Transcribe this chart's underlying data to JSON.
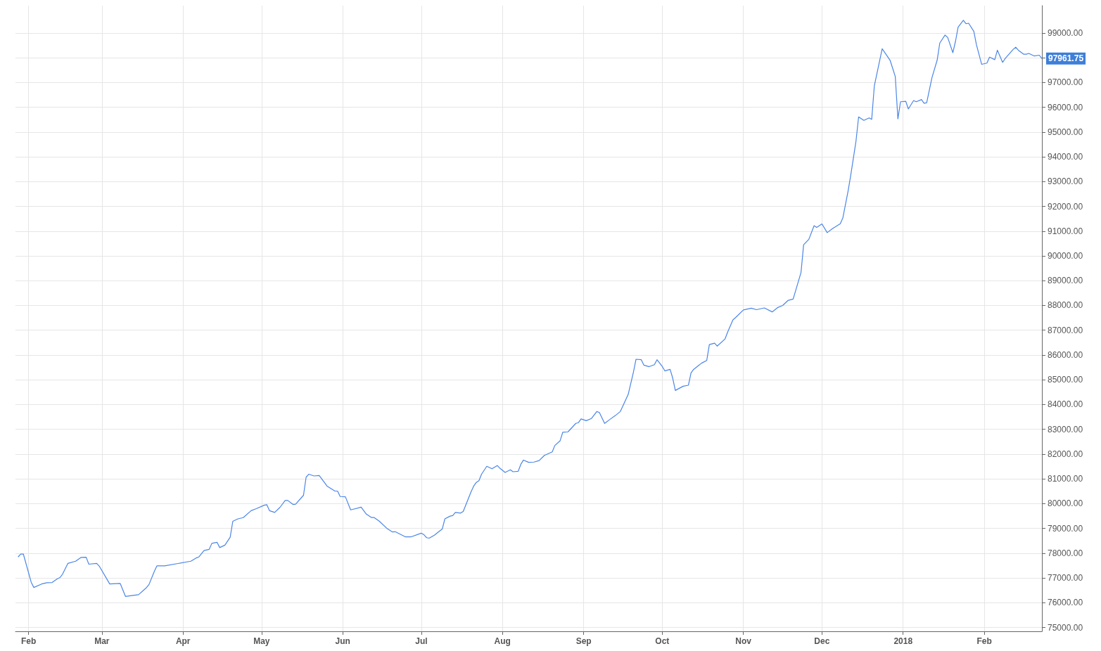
{
  "chart_data": {
    "type": "line",
    "x": [
      "2017-01-28",
      "2017-01-29",
      "2017-01-30",
      "2017-02-02",
      "2017-02-03",
      "2017-02-06",
      "2017-02-08",
      "2017-02-10",
      "2017-02-12",
      "2017-02-13",
      "2017-02-14",
      "2017-02-16",
      "2017-02-19",
      "2017-02-21",
      "2017-02-23",
      "2017-02-24",
      "2017-02-27",
      "2017-02-28",
      "2017-03-04",
      "2017-03-08",
      "2017-03-10",
      "2017-03-15",
      "2017-03-18",
      "2017-03-19",
      "2017-03-21",
      "2017-03-22",
      "2017-03-25",
      "2017-04-04",
      "2017-04-06",
      "2017-04-07",
      "2017-04-09",
      "2017-04-11",
      "2017-04-12",
      "2017-04-14",
      "2017-04-15",
      "2017-04-17",
      "2017-04-19",
      "2017-04-20",
      "2017-04-22",
      "2017-04-24",
      "2017-04-27",
      "2017-04-29",
      "2017-05-02",
      "2017-05-03",
      "2017-05-04",
      "2017-05-06",
      "2017-05-08",
      "2017-05-10",
      "2017-05-11",
      "2017-05-13",
      "2017-05-14",
      "2017-05-17",
      "2017-05-18",
      "2017-05-19",
      "2017-05-21",
      "2017-05-23",
      "2017-05-26",
      "2017-05-29",
      "2017-05-30",
      "2017-05-31",
      "2017-06-02",
      "2017-06-04",
      "2017-06-08",
      "2017-06-10",
      "2017-06-12",
      "2017-06-13",
      "2017-06-15",
      "2017-06-18",
      "2017-06-20",
      "2017-06-21",
      "2017-06-25",
      "2017-06-27",
      "2017-07-01",
      "2017-07-02",
      "2017-07-03",
      "2017-07-04",
      "2017-07-06",
      "2017-07-08",
      "2017-07-09",
      "2017-07-10",
      "2017-07-12",
      "2017-07-13",
      "2017-07-14",
      "2017-07-16",
      "2017-07-17",
      "2017-07-20",
      "2017-07-21",
      "2017-07-22",
      "2017-07-23",
      "2017-07-24",
      "2017-07-26",
      "2017-07-28",
      "2017-07-30",
      "2017-07-31",
      "2017-08-02",
      "2017-08-04",
      "2017-08-05",
      "2017-08-07",
      "2017-08-08",
      "2017-08-09",
      "2017-08-11",
      "2017-08-13",
      "2017-08-15",
      "2017-08-17",
      "2017-08-20",
      "2017-08-21",
      "2017-08-23",
      "2017-08-24",
      "2017-08-26",
      "2017-08-29",
      "2017-08-30",
      "2017-08-31",
      "2017-09-02",
      "2017-09-04",
      "2017-09-06",
      "2017-09-07",
      "2017-09-09",
      "2017-09-11",
      "2017-09-13",
      "2017-09-15",
      "2017-09-16",
      "2017-09-18",
      "2017-09-20",
      "2017-09-21",
      "2017-09-23",
      "2017-09-24",
      "2017-09-26",
      "2017-09-28",
      "2017-09-29",
      "2017-10-01",
      "2017-10-02",
      "2017-10-04",
      "2017-10-05",
      "2017-10-06",
      "2017-10-09",
      "2017-10-11",
      "2017-10-12",
      "2017-10-13",
      "2017-10-15",
      "2017-10-16",
      "2017-10-18",
      "2017-10-19",
      "2017-10-21",
      "2017-10-22",
      "2017-10-25",
      "2017-10-26",
      "2017-10-28",
      "2017-10-29",
      "2017-11-01",
      "2017-11-04",
      "2017-11-06",
      "2017-11-09",
      "2017-11-12",
      "2017-11-14",
      "2017-11-16",
      "2017-11-18",
      "2017-11-20",
      "2017-11-23",
      "2017-11-24",
      "2017-11-26",
      "2017-11-28",
      "2017-11-29",
      "2017-12-01",
      "2017-12-03",
      "2017-12-05",
      "2017-12-08",
      "2017-12-09",
      "2017-12-11",
      "2017-12-12",
      "2017-12-14",
      "2017-12-15",
      "2017-12-17",
      "2017-12-19",
      "2017-12-20",
      "2017-12-21",
      "2017-12-24",
      "2017-12-27",
      "2017-12-29",
      "2017-12-30",
      "2017-12-31",
      "2018-01-02",
      "2018-01-03",
      "2018-01-05",
      "2018-01-06",
      "2018-01-08",
      "2018-01-09",
      "2018-01-10",
      "2018-01-12",
      "2018-01-14",
      "2018-01-15",
      "2018-01-17",
      "2018-01-18",
      "2018-01-20",
      "2018-01-21",
      "2018-01-22",
      "2018-01-24",
      "2018-01-25",
      "2018-01-26",
      "2018-01-28",
      "2018-01-29",
      "2018-01-31",
      "2018-02-02",
      "2018-02-03",
      "2018-02-05",
      "2018-02-06",
      "2018-02-08",
      "2018-02-09",
      "2018-02-12",
      "2018-02-13",
      "2018-02-14",
      "2018-02-16",
      "2018-02-17",
      "2018-02-18",
      "2018-02-20",
      "2018-02-22",
      "2018-02-23"
    ],
    "series": [
      {
        "color": "#4a86e8",
        "values": [
          77850,
          77970,
          77970,
          76830,
          76620,
          76760,
          76810,
          76820,
          76970,
          77020,
          77160,
          77590,
          77680,
          77830,
          77840,
          77560,
          77590,
          77480,
          76760,
          76780,
          76260,
          76330,
          76610,
          76740,
          77260,
          77490,
          77490,
          77680,
          77810,
          77850,
          78110,
          78160,
          78400,
          78440,
          78230,
          78330,
          78650,
          79290,
          79390,
          79440,
          79720,
          79800,
          79940,
          79960,
          79720,
          79650,
          79850,
          80130,
          80130,
          79970,
          79980,
          80340,
          81070,
          81190,
          81120,
          81140,
          80710,
          80510,
          80510,
          80290,
          80280,
          79750,
          79860,
          79580,
          79440,
          79440,
          79290,
          78990,
          78860,
          78870,
          78660,
          78660,
          78810,
          78750,
          78630,
          78610,
          78730,
          78900,
          78980,
          79390,
          79500,
          79520,
          79650,
          79620,
          79690,
          80480,
          80710,
          80860,
          80930,
          81190,
          81510,
          81410,
          81540,
          81430,
          81260,
          81370,
          81290,
          81310,
          81590,
          81760,
          81670,
          81680,
          81740,
          81950,
          82090,
          82350,
          82540,
          82880,
          82900,
          83240,
          83270,
          83420,
          83350,
          83440,
          83720,
          83680,
          83240,
          83400,
          83550,
          83720,
          83950,
          84410,
          85310,
          85830,
          85810,
          85590,
          85530,
          85610,
          85810,
          85540,
          85360,
          85420,
          85070,
          84570,
          84740,
          84780,
          85280,
          85420,
          85590,
          85670,
          85780,
          86420,
          86480,
          86360,
          86650,
          86930,
          87420,
          87510,
          87820,
          87890,
          87830,
          87900,
          87740,
          87910,
          88000,
          88200,
          88260,
          89330,
          90450,
          90670,
          91220,
          91150,
          91290,
          90940,
          91100,
          91300,
          91540,
          92630,
          93260,
          94630,
          95610,
          95470,
          95570,
          95510,
          96860,
          98360,
          97900,
          97240,
          95530,
          96220,
          96240,
          95930,
          96270,
          96220,
          96310,
          96160,
          96180,
          97190,
          97900,
          98590,
          98910,
          98820,
          98200,
          98660,
          99230,
          99510,
          99370,
          99390,
          99060,
          98520,
          97730,
          97780,
          98020,
          97920,
          98300,
          97810,
          97970,
          98330,
          98420,
          98300,
          98140,
          98140,
          98170,
          98070,
          98100,
          97961.75
        ]
      }
    ],
    "xlim": [
      "2017-01-27",
      "2018-02-23"
    ],
    "xticks": [
      {
        "value": "2017-02-01",
        "label": "Feb"
      },
      {
        "value": "2017-03-01",
        "label": "Mar"
      },
      {
        "value": "2017-04-01",
        "label": "Apr"
      },
      {
        "value": "2017-05-01",
        "label": "May"
      },
      {
        "value": "2017-06-01",
        "label": "Jun"
      },
      {
        "value": "2017-07-01",
        "label": "Jul"
      },
      {
        "value": "2017-08-01",
        "label": "Aug"
      },
      {
        "value": "2017-09-01",
        "label": "Sep"
      },
      {
        "value": "2017-10-01",
        "label": "Oct"
      },
      {
        "value": "2017-11-01",
        "label": "Nov"
      },
      {
        "value": "2017-12-01",
        "label": "Dec"
      },
      {
        "value": "2018-01-01",
        "label": "2018"
      },
      {
        "value": "2018-02-01",
        "label": "Feb"
      }
    ],
    "ylim": [
      74850,
      100100
    ],
    "yticks": [
      {
        "value": 75000,
        "label": "75000.00"
      },
      {
        "value": 76000,
        "label": "76000.00"
      },
      {
        "value": 77000,
        "label": "77000.00"
      },
      {
        "value": 78000,
        "label": "78000.00"
      },
      {
        "value": 79000,
        "label": "79000.00"
      },
      {
        "value": 80000,
        "label": "80000.00"
      },
      {
        "value": 81000,
        "label": "81000.00"
      },
      {
        "value": 82000,
        "label": "82000.00"
      },
      {
        "value": 83000,
        "label": "83000.00"
      },
      {
        "value": 84000,
        "label": "84000.00"
      },
      {
        "value": 85000,
        "label": "85000.00"
      },
      {
        "value": 86000,
        "label": "86000.00"
      },
      {
        "value": 87000,
        "label": "87000.00"
      },
      {
        "value": 88000,
        "label": "88000.00"
      },
      {
        "value": 89000,
        "label": "89000.00"
      },
      {
        "value": 90000,
        "label": "90000.00"
      },
      {
        "value": 91000,
        "label": "91000.00"
      },
      {
        "value": 92000,
        "label": "92000.00"
      },
      {
        "value": 93000,
        "label": "93000.00"
      },
      {
        "value": 94000,
        "label": "94000.00"
      },
      {
        "value": 95000,
        "label": "95000.00"
      },
      {
        "value": 96000,
        "label": "96000.00"
      },
      {
        "value": 97000,
        "label": "97000.00"
      },
      {
        "value": 98000,
        "label": null
      },
      {
        "value": 99000,
        "label": "99000.00"
      }
    ],
    "annotations": [
      {
        "text": "97961.75",
        "x": "2018-02-23",
        "y": 97961.75
      }
    ],
    "grid": true,
    "marker": "none",
    "line_style": "solid"
  }
}
